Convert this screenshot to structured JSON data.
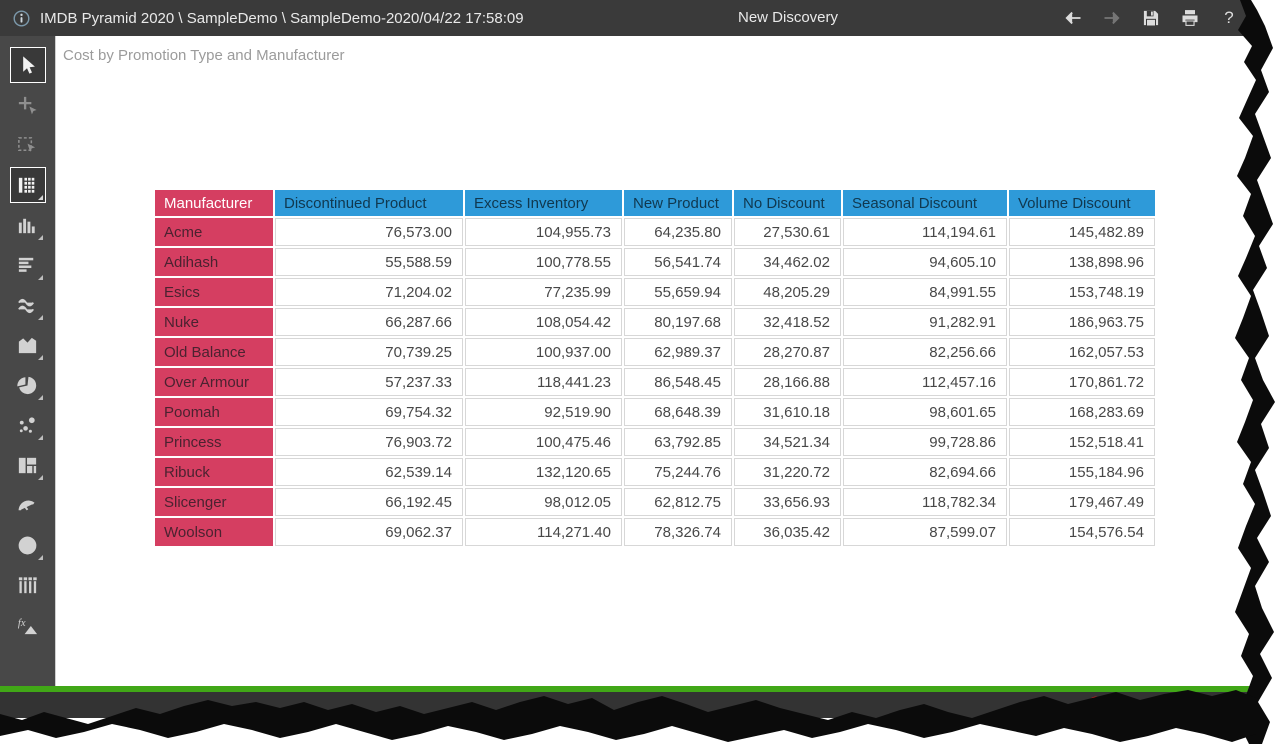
{
  "colors": {
    "accent_pink": "#d53e61",
    "accent_blue": "#2e9ad9",
    "green_bar": "#41a717",
    "badge_red": "#e11d1d"
  },
  "title_bar": {
    "breadcrumb": "IMDB Pyramid 2020 \\ SampleDemo \\ SampleDemo-2020/04/22 17:58:09",
    "document_title": "New Discovery",
    "actions": [
      {
        "id": "back-arrow",
        "enabled": true
      },
      {
        "id": "forward-arrow",
        "enabled": false
      },
      {
        "id": "save",
        "enabled": true
      },
      {
        "id": "print",
        "enabled": true
      },
      {
        "id": "help",
        "enabled": true,
        "label": "?"
      }
    ]
  },
  "sidebar": {
    "tools": [
      {
        "id": "pointer-select",
        "selected": true,
        "flyout": false,
        "dimmed": false
      },
      {
        "id": "add-select",
        "selected": false,
        "flyout": false,
        "dimmed": true
      },
      {
        "id": "marquee-select",
        "selected": false,
        "flyout": false,
        "dimmed": true
      },
      {
        "id": "grid-view",
        "selected": true,
        "flyout": true,
        "dimmed": false
      },
      {
        "id": "column-chart",
        "selected": false,
        "flyout": true,
        "dimmed": false
      },
      {
        "id": "bar-chart",
        "selected": false,
        "flyout": true,
        "dimmed": false
      },
      {
        "id": "line-chart",
        "selected": false,
        "flyout": true,
        "dimmed": false
      },
      {
        "id": "area-chart",
        "selected": false,
        "flyout": true,
        "dimmed": false
      },
      {
        "id": "pie-chart",
        "selected": false,
        "flyout": true,
        "dimmed": false
      },
      {
        "id": "scatter-chart",
        "selected": false,
        "flyout": true,
        "dimmed": false
      },
      {
        "id": "treemap-chart",
        "selected": false,
        "flyout": true,
        "dimmed": false
      },
      {
        "id": "gauge-chart",
        "selected": false,
        "flyout": false,
        "dimmed": false
      },
      {
        "id": "map-chart",
        "selected": false,
        "flyout": true,
        "dimmed": false
      },
      {
        "id": "slicer",
        "selected": false,
        "flyout": false,
        "dimmed": false
      },
      {
        "id": "formula",
        "selected": false,
        "flyout": false,
        "dimmed": false
      }
    ]
  },
  "canvas": {
    "report_title": "Cost by Promotion Type and Manufacturer"
  },
  "chart_data": {
    "type": "table",
    "title": "Cost by Promotion Type and Manufacturer",
    "row_header": "Manufacturer",
    "columns": [
      "Discontinued Product",
      "Excess Inventory",
      "New Product",
      "No Discount",
      "Seasonal Discount",
      "Volume Discount"
    ],
    "rows": [
      {
        "label": "Acme",
        "values": [
          "76,573.00",
          "104,955.73",
          "64,235.80",
          "27,530.61",
          "114,194.61",
          "145,482.89"
        ]
      },
      {
        "label": "Adihash",
        "values": [
          "55,588.59",
          "100,778.55",
          "56,541.74",
          "34,462.02",
          "94,605.10",
          "138,898.96"
        ]
      },
      {
        "label": "Esics",
        "values": [
          "71,204.02",
          "77,235.99",
          "55,659.94",
          "48,205.29",
          "84,991.55",
          "153,748.19"
        ]
      },
      {
        "label": "Nuke",
        "values": [
          "66,287.66",
          "108,054.42",
          "80,197.68",
          "32,418.52",
          "91,282.91",
          "186,963.75"
        ]
      },
      {
        "label": "Old Balance",
        "values": [
          "70,739.25",
          "100,937.00",
          "62,989.37",
          "28,270.87",
          "82,256.66",
          "162,057.53"
        ]
      },
      {
        "label": "Over Armour",
        "values": [
          "57,237.33",
          "118,441.23",
          "86,548.45",
          "28,166.88",
          "112,457.16",
          "170,861.72"
        ]
      },
      {
        "label": "Poomah",
        "values": [
          "69,754.32",
          "92,519.90",
          "68,648.39",
          "31,610.18",
          "98,601.65",
          "168,283.69"
        ]
      },
      {
        "label": "Princess",
        "values": [
          "76,903.72",
          "100,475.46",
          "63,792.85",
          "34,521.34",
          "99,728.86",
          "152,518.41"
        ]
      },
      {
        "label": "Ribuck",
        "values": [
          "62,539.14",
          "132,120.65",
          "75,244.76",
          "31,220.72",
          "82,694.66",
          "155,184.96"
        ]
      },
      {
        "label": "Slicenger",
        "values": [
          "66,192.45",
          "98,012.05",
          "62,812.75",
          "33,656.93",
          "118,782.34",
          "179,467.49"
        ]
      },
      {
        "label": "Woolson",
        "values": [
          "69,062.37",
          "114,271.40",
          "78,326.74",
          "36,035.42",
          "87,599.07",
          "154,576.54"
        ]
      }
    ]
  },
  "status_bar": {
    "icons": [
      {
        "id": "alert-badge"
      },
      {
        "id": "announcement"
      },
      {
        "id": "sync"
      },
      {
        "id": "loading"
      }
    ]
  }
}
